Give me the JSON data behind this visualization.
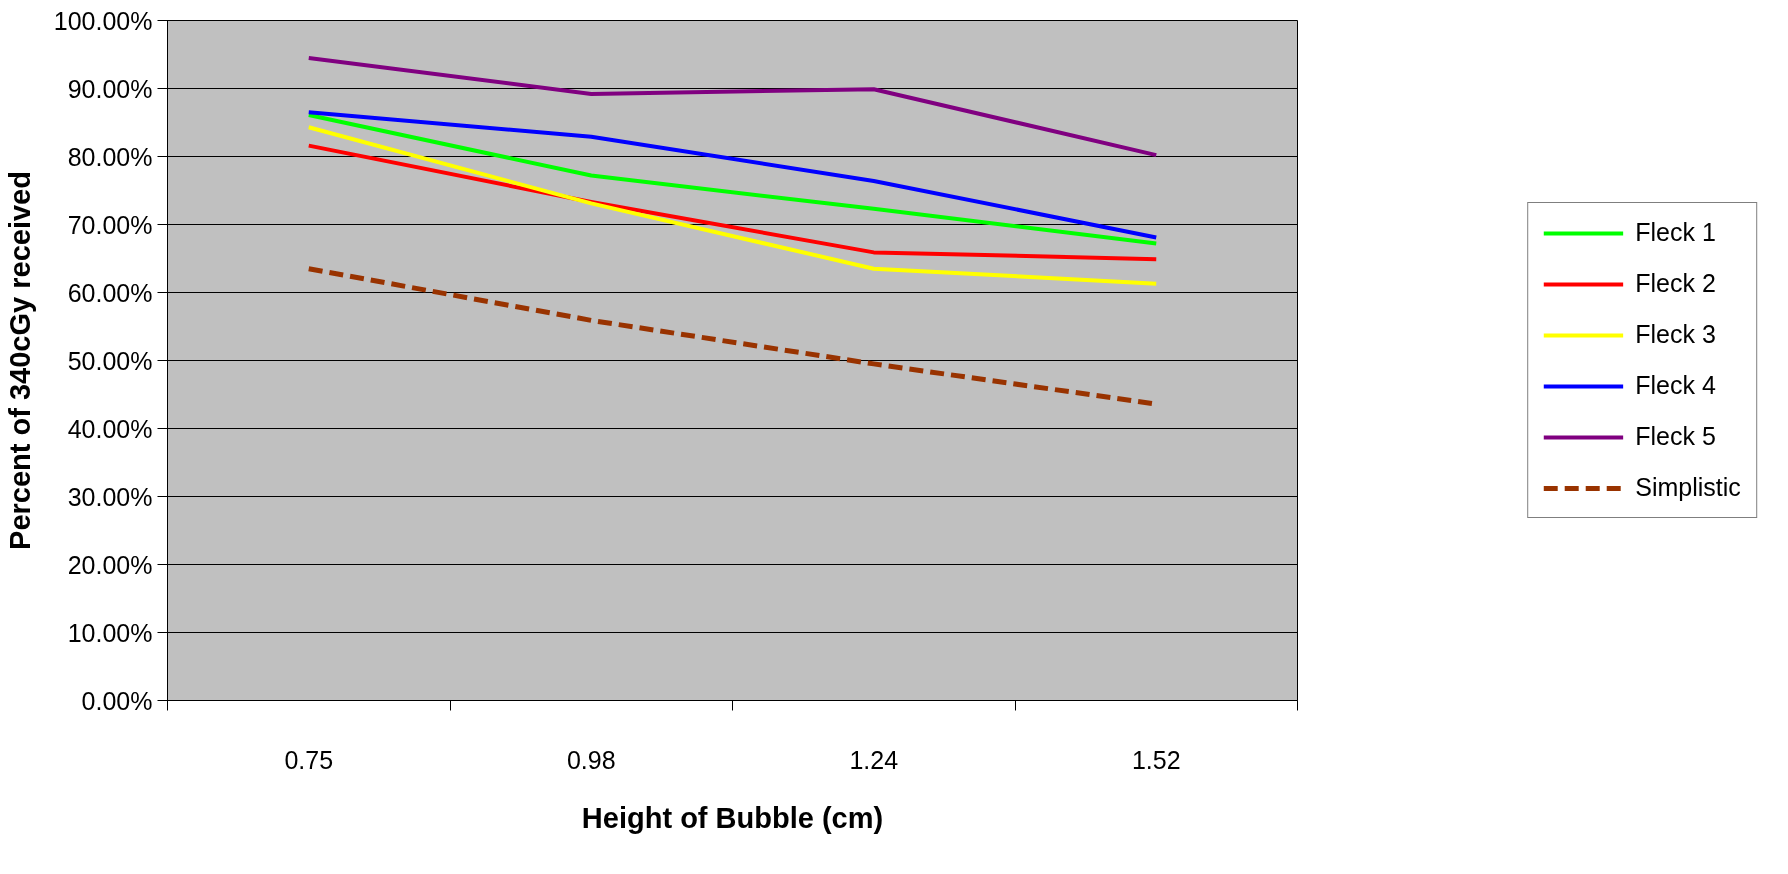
{
  "chart_data": {
    "type": "line",
    "xlabel": "Height of Bubble (cm)",
    "ylabel": "Percent of 340cGy received",
    "categories": [
      "0.75",
      "0.98",
      "1.24",
      "1.52"
    ],
    "series": [
      {
        "name": "Fleck 1",
        "color": "#00ff00",
        "values": [
          86.1,
          77.2,
          72.3,
          67.2
        ]
      },
      {
        "name": "Fleck 2",
        "color": "#ff0000",
        "values": [
          81.6,
          73.3,
          65.9,
          64.9
        ]
      },
      {
        "name": "Fleck 3",
        "color": "#ffff00",
        "values": [
          84.3,
          73.1,
          63.5,
          61.3
        ]
      },
      {
        "name": "Fleck 4",
        "color": "#0000ff",
        "values": [
          86.5,
          82.9,
          76.4,
          68.1
        ]
      },
      {
        "name": "Fleck 5",
        "color": "#800080",
        "values": [
          94.5,
          89.2,
          89.9,
          80.2
        ]
      },
      {
        "name": "Simplistic",
        "color": "#993300",
        "values": [
          63.5,
          55.9,
          49.5,
          43.6
        ],
        "line_style": "dashed"
      }
    ],
    "ylim": [
      0,
      100
    ],
    "yticks": [
      {
        "value": 0,
        "label": "0.00%"
      },
      {
        "value": 10,
        "label": "10.00%"
      },
      {
        "value": 20,
        "label": "20.00%"
      },
      {
        "value": 30,
        "label": "30.00%"
      },
      {
        "value": 40,
        "label": "40.00%"
      },
      {
        "value": 50,
        "label": "50.00%"
      },
      {
        "value": 60,
        "label": "60.00%"
      },
      {
        "value": 70,
        "label": "70.00%"
      },
      {
        "value": 80,
        "label": "80.00%"
      },
      {
        "value": 90,
        "label": "90.00%"
      },
      {
        "value": 100,
        "label": "100.00%"
      }
    ],
    "grid": "y",
    "legend": "right",
    "marker": "none",
    "line_style": "solid"
  }
}
